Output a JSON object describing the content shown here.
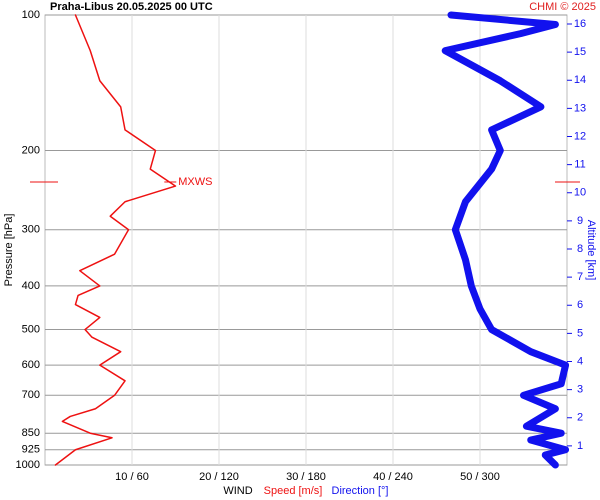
{
  "chart_data": {
    "type": "profile",
    "title": "Praha-Libus   20.05.2025 00 UTC",
    "credit": "CHMI © 2025",
    "ylabel": "Pressure [hPa]",
    "y2label": "Altitude [km]",
    "xlabel": "WIND",
    "log_y": true,
    "grid": true,
    "ylim": [
      100,
      1000
    ],
    "yticks": [
      100,
      200,
      300,
      400,
      500,
      600,
      700,
      850,
      925,
      1000
    ],
    "xlim": [
      0,
      60
    ],
    "xticks": [
      {
        "value": 10,
        "label": "10 / 60"
      },
      {
        "value": 20,
        "label": "20 / 120"
      },
      {
        "value": 30,
        "label": "30 / 180"
      },
      {
        "value": 40,
        "label": "40 / 240"
      },
      {
        "value": 50,
        "label": "50 / 300"
      }
    ],
    "x2lim": [
      0,
      360
    ],
    "y2lim": [
      0.32,
      16.32
    ],
    "y2ticks": [
      1,
      2,
      3,
      4,
      5,
      6,
      7,
      8,
      9,
      10,
      11,
      12,
      13,
      14,
      15,
      16
    ],
    "series": [
      {
        "name": "Speed [m/s]",
        "color": "#ee1111",
        "axis": "x",
        "pressure": [
          1000,
          925,
          870,
          850,
          800,
          780,
          750,
          700,
          650,
          600,
          560,
          520,
          500,
          470,
          440,
          420,
          400,
          370,
          340,
          300,
          280,
          260,
          240,
          220,
          200,
          180,
          160,
          140,
          120,
          100
        ],
        "values": [
          1.2,
          3.5,
          7.7,
          5.2,
          2,
          2.9,
          5.8,
          8,
          9.2,
          6.3,
          8.7,
          5.4,
          4.6,
          6.3,
          3.5,
          3.8,
          6.3,
          4,
          8,
          9.6,
          7.5,
          9.2,
          15,
          12.1,
          12.7,
          9.2,
          8.7,
          6.3,
          5.2,
          3.5
        ]
      },
      {
        "name": "Direction [°]",
        "color": "#1111ee",
        "axis": "x2",
        "pressure": [
          1000,
          950,
          925,
          880,
          850,
          820,
          750,
          700,
          660,
          600,
          560,
          500,
          450,
          400,
          350,
          300,
          260,
          220,
          200,
          180,
          160,
          140,
          120,
          110,
          105,
          100
        ],
        "values": [
          352,
          345,
          359,
          335,
          356,
          332,
          352,
          330,
          356,
          359,
          335,
          308,
          300,
          294,
          290,
          283,
          290,
          308,
          314,
          308,
          342,
          314,
          276,
          328,
          352,
          280
        ]
      }
    ],
    "mxws": {
      "label": "MXWS",
      "pressure": 235,
      "value": 14.4
    }
  }
}
